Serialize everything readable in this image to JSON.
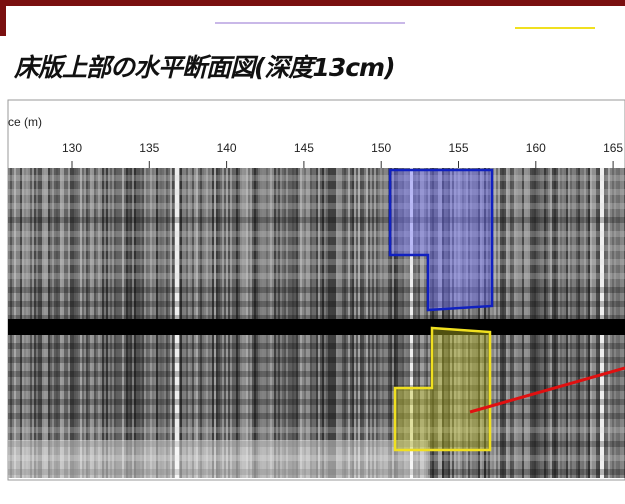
{
  "header": {
    "title": "床版上部の水平断面図(深度13cm)"
  },
  "axis": {
    "label": "ce (m)",
    "ticks": [
      130,
      135,
      140,
      145,
      150,
      155,
      160,
      165
    ]
  }
}
